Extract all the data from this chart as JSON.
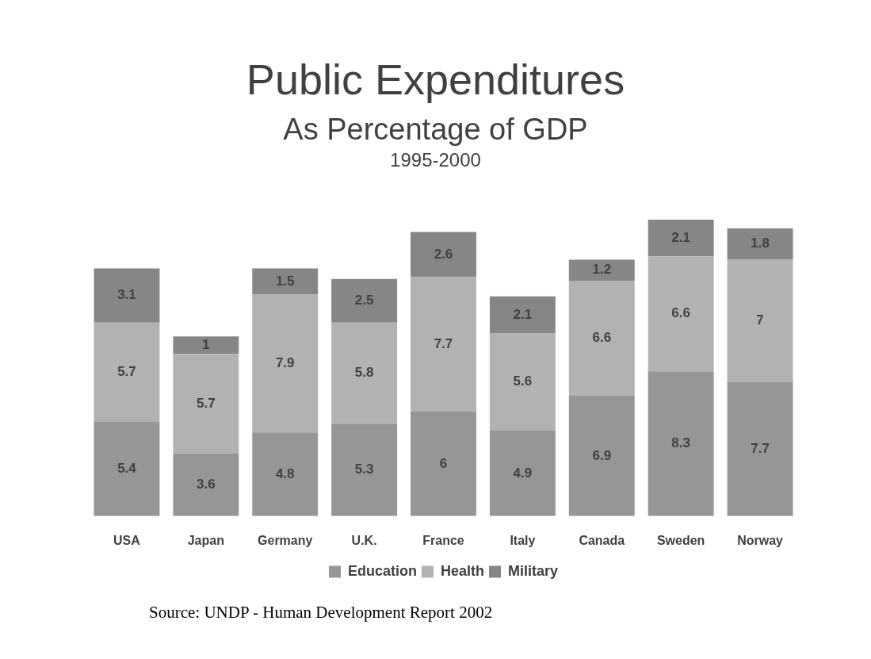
{
  "chart_data": {
    "type": "bar",
    "title": "Public Expenditures",
    "subtitle": "As Percentage of GDP\n1995-2000",
    "categories": [
      "USA",
      "Japan",
      "Germany",
      "U.K.",
      "France",
      "Italy",
      "Canada",
      "Sweden",
      "Norway"
    ],
    "stacked": true,
    "data_labels": true,
    "legend": "bottom",
    "series": [
      {
        "name": "Education",
        "color": "#969696",
        "values": [
          5.4,
          3.6,
          4.8,
          5.3,
          6,
          4.9,
          6.9,
          8.3,
          7.7
        ]
      },
      {
        "name": "Health",
        "color": "#b2b2b2",
        "values": [
          5.7,
          5.7,
          7.9,
          5.8,
          7.7,
          5.6,
          6.6,
          6.6,
          7
        ]
      },
      {
        "name": "Military",
        "color": "#868686",
        "values": [
          3.1,
          1,
          1.5,
          2.5,
          2.6,
          2.1,
          1.2,
          2.1,
          1.8
        ]
      }
    ],
    "annotations": [
      "Source: UNDP - Human Development Report 2002"
    ]
  }
}
